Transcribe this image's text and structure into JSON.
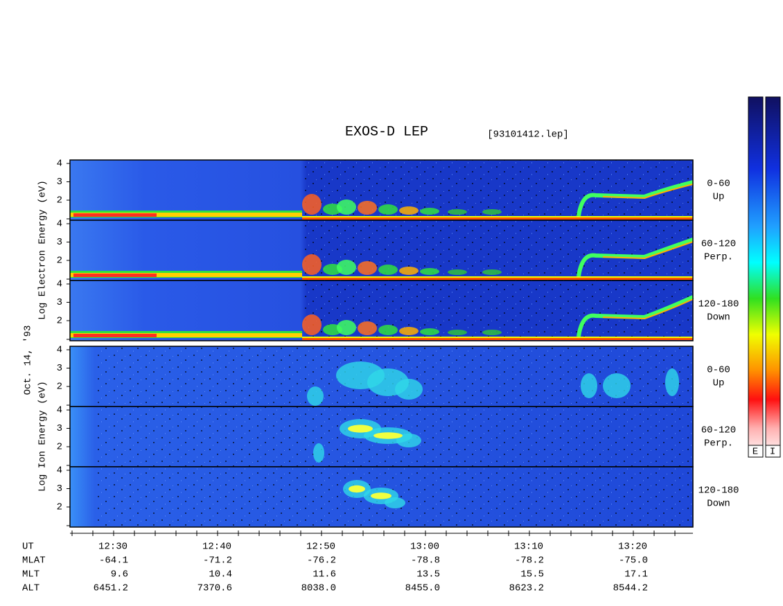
{
  "title": "EXOS-D LEP",
  "file": "[93101412.lep]",
  "date": "Oct. 14, '93",
  "yticks": [
    "4",
    "3",
    "2"
  ],
  "groups": [
    {
      "label": "Log Electron Energy (eV)",
      "panels": [
        {
          "angle": "0-60",
          "direction": "Up"
        },
        {
          "angle": "60-120",
          "direction": "Perp."
        },
        {
          "angle": "120-180",
          "direction": "Down"
        }
      ]
    },
    {
      "label": "Log Ion Energy (eV)",
      "panels": [
        {
          "angle": "0-60",
          "direction": "Up"
        },
        {
          "angle": "60-120",
          "direction": "Perp."
        },
        {
          "angle": "120-180",
          "direction": "Down"
        }
      ]
    }
  ],
  "colorbars": [
    "E",
    "I"
  ],
  "ephemeris": [
    {
      "name": "UT",
      "values": [
        "12:30",
        "12:40",
        "12:50",
        "13:00",
        "13:10",
        "13:20"
      ]
    },
    {
      "name": "MLAT",
      "values": [
        "-64.1",
        "-71.2",
        "-76.2",
        "-78.8",
        "-78.2",
        "-75.0"
      ]
    },
    {
      "name": "MLT",
      "values": [
        "9.6",
        "10.4",
        "11.6",
        "13.5",
        "15.5",
        "17.1"
      ]
    },
    {
      "name": "ALT",
      "values": [
        "6451.2",
        "7370.6",
        "8038.0",
        "8455.0",
        "8623.2",
        "8544.2"
      ]
    }
  ]
}
